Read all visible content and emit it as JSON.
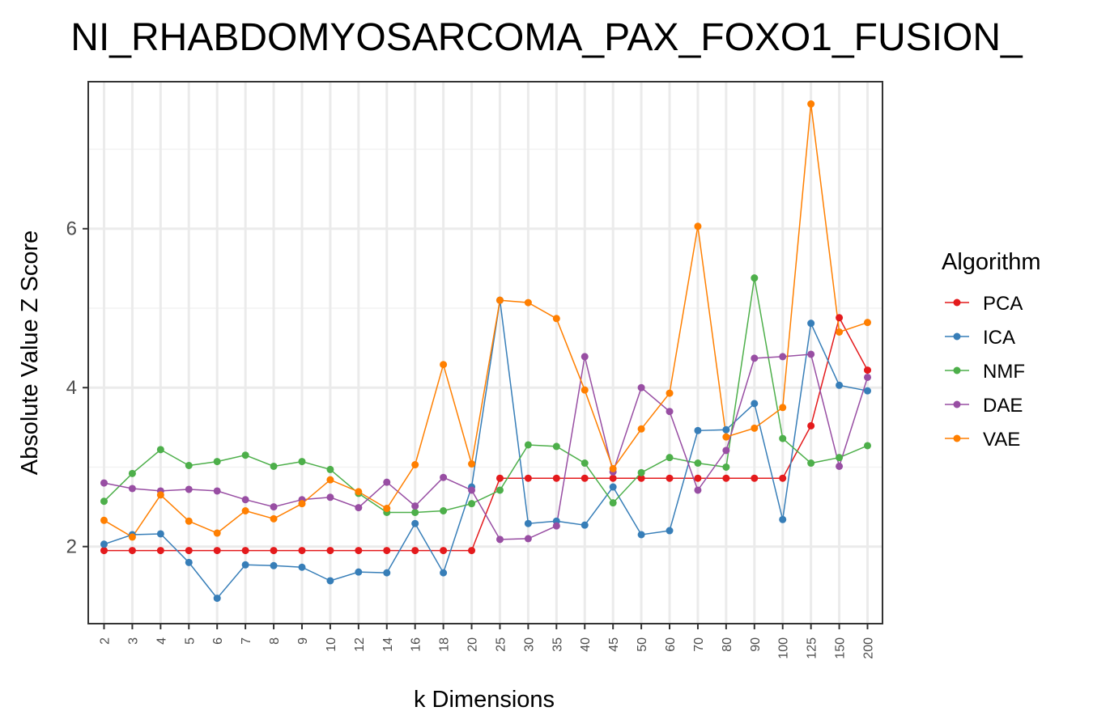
{
  "chart_data": {
    "type": "line",
    "title": "NI_RHABDOMYOSARCOMA_PAX_FOXO1_FUSION_",
    "xlabel": "k Dimensions",
    "ylabel": "Absolute Value Z Score",
    "categories": [
      "2",
      "3",
      "4",
      "5",
      "6",
      "7",
      "8",
      "9",
      "10",
      "12",
      "14",
      "16",
      "18",
      "20",
      "25",
      "30",
      "35",
      "40",
      "45",
      "50",
      "60",
      "70",
      "80",
      "90",
      "100",
      "125",
      "150",
      "200"
    ],
    "ylim": [
      1.03,
      7.85
    ],
    "yticks": [
      2,
      4,
      6
    ],
    "grid": true,
    "legend": {
      "title": "Algorithm",
      "position": "right"
    },
    "series": [
      {
        "name": "PCA",
        "color": "#E41A1C",
        "values": [
          1.95,
          1.95,
          1.95,
          1.95,
          1.95,
          1.95,
          1.95,
          1.95,
          1.95,
          1.95,
          1.95,
          1.95,
          1.95,
          1.95,
          2.86,
          2.86,
          2.86,
          2.86,
          2.86,
          2.86,
          2.86,
          2.86,
          2.86,
          2.86,
          2.86,
          3.52,
          4.88,
          4.22
        ]
      },
      {
        "name": "ICA",
        "color": "#377EB8",
        "values": [
          2.03,
          2.15,
          2.16,
          1.8,
          1.35,
          1.77,
          1.76,
          1.74,
          1.57,
          1.68,
          1.67,
          2.29,
          1.67,
          2.75,
          5.1,
          2.29,
          2.32,
          2.27,
          2.75,
          2.15,
          2.2,
          3.46,
          3.47,
          3.8,
          2.34,
          4.81,
          4.03,
          3.96
        ]
      },
      {
        "name": "NMF",
        "color": "#4DAF4A",
        "values": [
          2.57,
          2.92,
          3.22,
          3.02,
          3.07,
          3.15,
          3.01,
          3.07,
          2.97,
          2.67,
          2.43,
          2.43,
          2.45,
          2.54,
          2.71,
          3.28,
          3.26,
          3.05,
          2.55,
          2.93,
          3.12,
          3.05,
          3.0,
          5.38,
          3.36,
          3.05,
          3.12,
          3.27
        ]
      },
      {
        "name": "DAE",
        "color": "#984EA3",
        "values": [
          2.8,
          2.73,
          2.7,
          2.72,
          2.7,
          2.59,
          2.5,
          2.59,
          2.62,
          2.49,
          2.81,
          2.51,
          2.87,
          2.71,
          2.09,
          2.1,
          2.26,
          4.39,
          2.94,
          4.0,
          3.7,
          2.71,
          3.21,
          4.37,
          4.39,
          4.42,
          3.01,
          4.13
        ]
      },
      {
        "name": "VAE",
        "color": "#FF7F00",
        "values": [
          2.33,
          2.12,
          2.65,
          2.32,
          2.17,
          2.45,
          2.35,
          2.54,
          2.84,
          2.69,
          2.48,
          3.03,
          4.29,
          3.04,
          5.1,
          5.07,
          4.87,
          3.97,
          2.98,
          3.48,
          3.93,
          6.03,
          3.38,
          3.49,
          3.75,
          7.57,
          4.7,
          4.82
        ]
      }
    ]
  }
}
